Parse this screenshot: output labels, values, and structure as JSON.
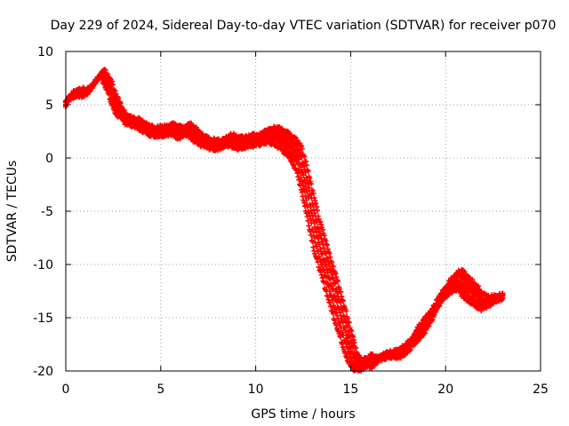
{
  "chart_data": {
    "type": "scatter",
    "title": "Day 229 of 2024, Sidereal Day-to-day VTEC variation (SDTVAR) for receiver p070",
    "xlabel": "GPS time / hours",
    "ylabel": "SDTVAR / TECUs",
    "xlim": [
      0,
      25
    ],
    "ylim": [
      -20,
      10
    ],
    "xticks": [
      0,
      5,
      10,
      15,
      20,
      25
    ],
    "yticks": [
      -20,
      -15,
      -10,
      -5,
      0,
      5,
      10
    ],
    "xtick_labels": [
      "0",
      "5",
      "10",
      "15",
      "20",
      "25"
    ],
    "ytick_labels": [
      "-20",
      "-15",
      "-10",
      "-5",
      "0",
      "5",
      "10"
    ],
    "grid": true,
    "marker": "+",
    "color": "#ff0000",
    "series": [
      {
        "name": "SDTVAR",
        "x": [
          0.0,
          0.25,
          0.5,
          0.75,
          1.0,
          1.25,
          1.5,
          1.75,
          1.9,
          2.1,
          2.3,
          2.5,
          2.75,
          3.0,
          3.25,
          3.5,
          3.75,
          4.0,
          4.25,
          4.5,
          4.75,
          5.0,
          5.25,
          5.5,
          5.75,
          6.0,
          6.25,
          6.5,
          6.75,
          7.0,
          7.25,
          7.5,
          7.75,
          8.0,
          8.25,
          8.5,
          8.75,
          9.0,
          9.25,
          9.5,
          9.75,
          10.0,
          10.25,
          10.5,
          10.75,
          11.0,
          11.25,
          11.5,
          11.75,
          12.0,
          12.25,
          12.5,
          12.75,
          13.0,
          13.25,
          13.5,
          13.75,
          14.0,
          14.25,
          14.5,
          14.75,
          15.0,
          15.25,
          15.5,
          15.75,
          16.0,
          16.25,
          16.5,
          16.75,
          17.0,
          17.25,
          17.5,
          17.75,
          18.0,
          18.25,
          18.5,
          18.75,
          19.0,
          19.25,
          19.5,
          19.75,
          20.0,
          20.25,
          20.5,
          20.75,
          21.0,
          21.25,
          21.5,
          21.75,
          22.0,
          22.25,
          22.5,
          22.75,
          23.0
        ],
        "y": [
          5.2,
          5.8,
          6.0,
          6.2,
          6.1,
          6.4,
          7.0,
          7.6,
          8.0,
          7.5,
          6.8,
          5.6,
          4.6,
          4.0,
          3.6,
          3.4,
          3.3,
          3.0,
          2.8,
          2.6,
          2.5,
          2.5,
          2.6,
          2.7,
          2.6,
          2.4,
          2.5,
          2.7,
          2.2,
          1.8,
          1.6,
          1.4,
          1.3,
          1.2,
          1.4,
          1.6,
          1.7,
          1.5,
          1.4,
          1.5,
          1.7,
          1.6,
          1.8,
          2.0,
          2.1,
          2.1,
          1.9,
          1.6,
          1.2,
          0.8,
          0.0,
          -1.5,
          -3.5,
          -5.5,
          -7.5,
          -9.0,
          -10.5,
          -12.0,
          -13.5,
          -15.0,
          -16.5,
          -18.0,
          -19.2,
          -19.5,
          -19.3,
          -19.0,
          -19.2,
          -18.8,
          -18.6,
          -18.5,
          -18.4,
          -18.3,
          -18.1,
          -17.8,
          -17.2,
          -16.5,
          -16.0,
          -15.5,
          -14.8,
          -14.0,
          -13.2,
          -12.5,
          -12.0,
          -11.6,
          -11.5,
          -12.0,
          -12.4,
          -12.8,
          -13.2,
          -13.6,
          -13.5,
          -13.3,
          -13.2,
          -13.1
        ],
        "spread": [
          0.8,
          0.7,
          0.6,
          0.6,
          0.6,
          0.7,
          0.7,
          0.6,
          0.5,
          0.7,
          0.8,
          0.8,
          0.8,
          0.6,
          0.6,
          0.6,
          0.6,
          0.6,
          0.6,
          0.7,
          0.8,
          0.8,
          0.9,
          0.9,
          0.9,
          0.9,
          1.0,
          1.0,
          1.0,
          0.9,
          0.8,
          0.8,
          0.8,
          0.8,
          0.9,
          1.0,
          1.0,
          1.0,
          1.0,
          1.0,
          1.0,
          1.0,
          1.1,
          1.2,
          1.3,
          1.5,
          1.6,
          1.6,
          1.8,
          2.0,
          2.2,
          2.4,
          2.6,
          2.8,
          3.0,
          3.0,
          3.0,
          3.0,
          3.0,
          2.8,
          2.6,
          2.2,
          1.4,
          1.0,
          1.0,
          1.0,
          0.8,
          0.6,
          0.6,
          0.6,
          0.6,
          0.8,
          1.0,
          1.2,
          1.4,
          1.6,
          1.8,
          1.8,
          1.8,
          1.6,
          1.4,
          1.4,
          1.6,
          1.8,
          1.8,
          1.8,
          1.8,
          1.6,
          1.4,
          1.2,
          1.0,
          0.8,
          0.6,
          0.5
        ]
      }
    ]
  }
}
